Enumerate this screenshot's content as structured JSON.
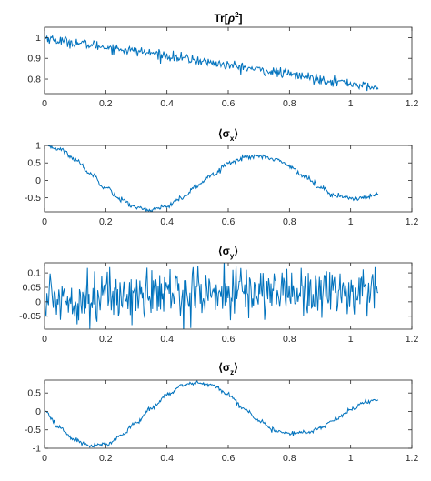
{
  "colors": {
    "line": "#0072BD",
    "axis": "#262626",
    "background": "#ffffff"
  },
  "chart_data": [
    {
      "type": "line",
      "title": {
        "main": "Tr[",
        "symbol": "ρ",
        "sup": "2",
        "close": "]"
      },
      "xlabel": "",
      "ylabel": "",
      "xlim": [
        0,
        1.2
      ],
      "ylim": [
        0.73,
        1.05
      ],
      "xticks": [
        0,
        0.2,
        0.4,
        0.6,
        0.8,
        1,
        1.2
      ],
      "xtick_labels": [
        "0",
        "0.2",
        "0.4",
        "0.6",
        "0.8",
        "1",
        "1.2"
      ],
      "yticks": [
        0.8,
        0.9,
        1
      ],
      "ytick_labels": [
        "0.8",
        "0.9",
        "1"
      ],
      "grid": false,
      "series": [
        {
          "x": [
            0,
            0.05,
            0.1,
            0.15,
            0.2,
            0.25,
            0.3,
            0.35,
            0.4,
            0.45,
            0.5,
            0.55,
            0.6,
            0.65,
            0.7,
            0.75,
            0.8,
            0.85,
            0.9,
            0.95,
            1.0,
            1.05,
            1.09
          ],
          "y": [
            1.0,
            0.985,
            0.975,
            0.965,
            0.955,
            0.945,
            0.935,
            0.925,
            0.912,
            0.9,
            0.89,
            0.878,
            0.866,
            0.856,
            0.845,
            0.834,
            0.823,
            0.812,
            0.8,
            0.79,
            0.778,
            0.765,
            0.755
          ],
          "noise": 0.012
        }
      ]
    },
    {
      "type": "line",
      "title": {
        "main": "⟨σ",
        "sub": "x",
        "close": "⟩"
      },
      "xlabel": "",
      "ylabel": "",
      "xlim": [
        0,
        1.2
      ],
      "ylim": [
        -0.9,
        1.0
      ],
      "xticks": [
        0,
        0.2,
        0.4,
        0.6,
        0.8,
        1,
        1.2
      ],
      "xtick_labels": [
        "0",
        "0.2",
        "0.4",
        "0.6",
        "0.8",
        "1",
        "1.2"
      ],
      "yticks": [
        -0.5,
        0,
        0.5,
        1
      ],
      "ytick_labels": [
        "-0.5",
        "0",
        "0.5",
        "1"
      ],
      "grid": false,
      "series": [
        {
          "x": [
            0,
            0.05,
            0.1,
            0.15,
            0.2,
            0.25,
            0.3,
            0.35,
            0.4,
            0.45,
            0.5,
            0.55,
            0.6,
            0.65,
            0.7,
            0.75,
            0.8,
            0.85,
            0.9,
            0.95,
            1.0,
            1.05,
            1.09
          ],
          "y": [
            1.0,
            0.9,
            0.6,
            0.2,
            -0.2,
            -0.55,
            -0.78,
            -0.85,
            -0.75,
            -0.5,
            -0.15,
            0.2,
            0.48,
            0.65,
            0.7,
            0.62,
            0.42,
            0.1,
            -0.2,
            -0.42,
            -0.52,
            -0.48,
            -0.42
          ],
          "noise": 0.035
        }
      ]
    },
    {
      "type": "line",
      "title": {
        "main": "⟨σ",
        "sub": "y",
        "close": "⟩"
      },
      "xlabel": "",
      "ylabel": "",
      "xlim": [
        0,
        1.2
      ],
      "ylim": [
        -0.095,
        0.135
      ],
      "xticks": [
        0,
        0.2,
        0.4,
        0.6,
        0.8,
        1,
        1.2
      ],
      "xtick_labels": [
        "0",
        "0.2",
        "0.4",
        "0.6",
        "0.8",
        "1",
        "1.2"
      ],
      "yticks": [
        -0.05,
        0,
        0.05,
        0.1
      ],
      "ytick_labels": [
        "-0.05",
        "0",
        "0.05",
        "0.1"
      ],
      "grid": false,
      "series": [
        {
          "x": [
            0,
            0.1,
            0.2,
            0.3,
            0.4,
            0.5,
            0.6,
            0.7,
            0.8,
            0.9,
            1.0,
            1.09
          ],
          "y": [
            0.01,
            0.015,
            0.02,
            0.025,
            0.028,
            0.03,
            0.032,
            0.035,
            0.037,
            0.036,
            0.034,
            0.033
          ],
          "noise": 0.045
        }
      ]
    },
    {
      "type": "line",
      "title": {
        "main": "⟨σ",
        "sub": "z",
        "close": "⟩"
      },
      "xlabel": "",
      "ylabel": "",
      "xlim": [
        0,
        1.2
      ],
      "ylim": [
        -1.0,
        0.85
      ],
      "xticks": [
        0,
        0.2,
        0.4,
        0.6,
        0.8,
        1,
        1.2
      ],
      "xtick_labels": [
        "0",
        "0.2",
        "0.4",
        "0.6",
        "0.8",
        "1",
        "1.2"
      ],
      "yticks": [
        -1,
        -0.5,
        0,
        0.5
      ],
      "ytick_labels": [
        "-1",
        "-0.5",
        "0",
        "0.5"
      ],
      "grid": false,
      "series": [
        {
          "x": [
            0,
            0.05,
            0.1,
            0.15,
            0.2,
            0.25,
            0.3,
            0.35,
            0.4,
            0.45,
            0.5,
            0.55,
            0.6,
            0.65,
            0.7,
            0.75,
            0.8,
            0.85,
            0.9,
            0.95,
            1.0,
            1.05,
            1.09
          ],
          "y": [
            0.0,
            -0.45,
            -0.78,
            -0.93,
            -0.9,
            -0.65,
            -0.3,
            0.1,
            0.45,
            0.7,
            0.78,
            0.7,
            0.45,
            0.1,
            -0.25,
            -0.5,
            -0.6,
            -0.58,
            -0.45,
            -0.2,
            0.05,
            0.25,
            0.33
          ],
          "noise": 0.03
        }
      ]
    }
  ]
}
